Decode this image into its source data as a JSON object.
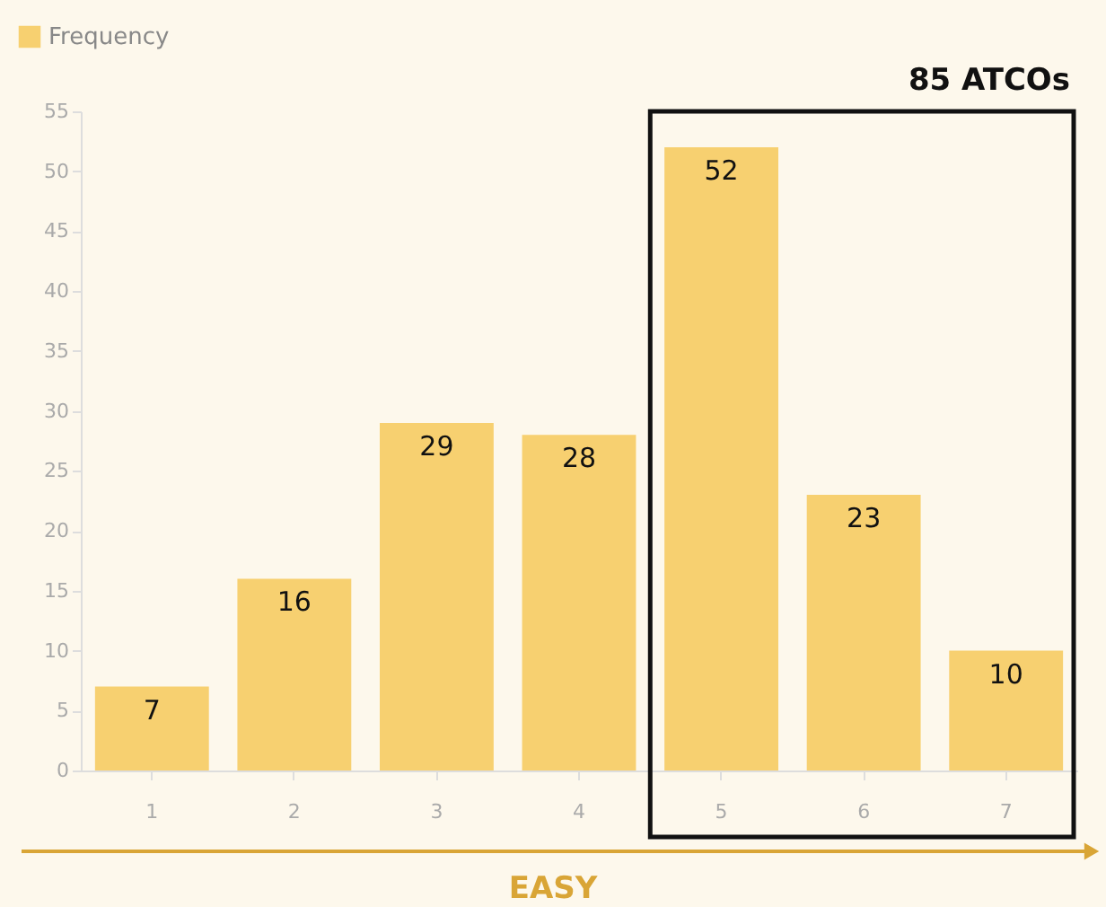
{
  "chart_data": {
    "type": "bar",
    "categories": [
      "1",
      "2",
      "3",
      "4",
      "5",
      "6",
      "7"
    ],
    "series": [
      {
        "name": "Frequency",
        "color": "#f7d070",
        "values": [
          7,
          16,
          29,
          28,
          52,
          23,
          10
        ]
      }
    ],
    "ylim": [
      0,
      55
    ],
    "yticks": [
      0,
      5,
      10,
      15,
      20,
      25,
      30,
      35,
      40,
      45,
      50,
      55
    ],
    "data_labels": true,
    "legend": "top left",
    "grid": false,
    "annotations": [
      "85 ATCOs",
      "EASY"
    ]
  }
}
